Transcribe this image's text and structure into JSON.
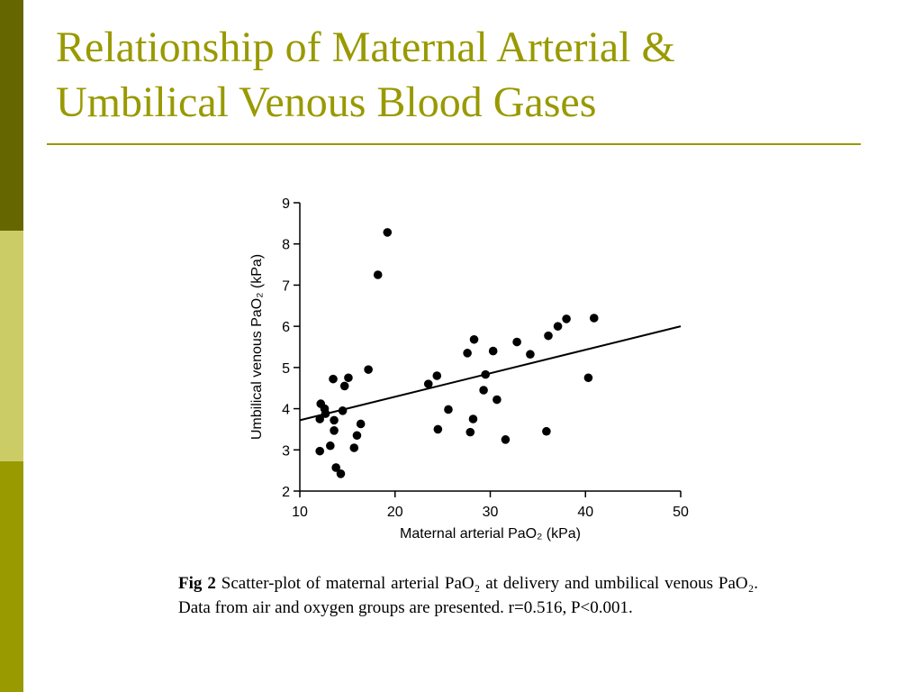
{
  "slide": {
    "title_line1": "Relationship of Maternal Arterial &",
    "title_line2": "Umbilical Venous Blood Gases",
    "title_color": "#999900",
    "sidebar_colors": [
      "#666600",
      "#cccc66",
      "#999900"
    ]
  },
  "caption": {
    "label": "Fig 2",
    "text": "Scatter-plot of maternal arterial PaO₂ at delivery and umbilical venous PaO₂. Data from air and oxygen groups are presented. r=0.516, P<0.001."
  },
  "chart_data": {
    "type": "scatter",
    "xlabel": "Maternal arterial PaO₂ (kPa)",
    "ylabel": "Umbilical venous PaO₂ (kPa)",
    "xlim": [
      10,
      50
    ],
    "ylim": [
      2,
      9
    ],
    "xticks": [
      10,
      20,
      30,
      40,
      50
    ],
    "yticks": [
      2,
      3,
      4,
      5,
      6,
      7,
      8,
      9
    ],
    "grid": false,
    "points": [
      [
        12.2,
        4.12
      ],
      [
        12.1,
        3.75
      ],
      [
        12.6,
        4.0
      ],
      [
        12.7,
        3.88
      ],
      [
        12.1,
        2.97
      ],
      [
        13.2,
        3.1
      ],
      [
        13.5,
        4.72
      ],
      [
        13.6,
        3.72
      ],
      [
        13.6,
        3.47
      ],
      [
        13.8,
        2.57
      ],
      [
        14.3,
        2.42
      ],
      [
        14.5,
        3.95
      ],
      [
        14.7,
        4.55
      ],
      [
        15.1,
        4.75
      ],
      [
        15.7,
        3.05
      ],
      [
        16.0,
        3.35
      ],
      [
        16.4,
        3.63
      ],
      [
        17.2,
        4.95
      ],
      [
        18.2,
        7.25
      ],
      [
        19.2,
        8.28
      ],
      [
        23.5,
        4.6
      ],
      [
        24.4,
        4.8
      ],
      [
        24.5,
        3.5
      ],
      [
        25.6,
        3.98
      ],
      [
        27.6,
        5.35
      ],
      [
        27.9,
        3.43
      ],
      [
        28.2,
        3.75
      ],
      [
        28.3,
        5.68
      ],
      [
        29.3,
        4.45
      ],
      [
        29.5,
        4.83
      ],
      [
        30.3,
        5.4
      ],
      [
        30.7,
        4.22
      ],
      [
        31.6,
        3.25
      ],
      [
        32.8,
        5.62
      ],
      [
        34.2,
        5.32
      ],
      [
        35.9,
        3.45
      ],
      [
        36.1,
        5.77
      ],
      [
        37.1,
        6.0
      ],
      [
        38.0,
        6.18
      ],
      [
        40.3,
        4.75
      ],
      [
        40.9,
        6.2
      ]
    ],
    "regression_line": {
      "x": [
        10,
        50
      ],
      "y": [
        3.72,
        6.0
      ]
    }
  }
}
